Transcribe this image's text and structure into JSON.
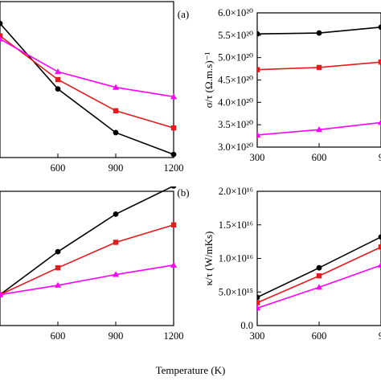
{
  "figure": {
    "shared_xlabel": "Temperature (K)"
  },
  "chart_data": [
    {
      "id": "tl",
      "type": "line",
      "panel_label": "(a)",
      "xlabel": "",
      "ylabel": "",
      "x_ticks": [
        "600",
        "900",
        "1200"
      ],
      "y_ticks": [],
      "x": [
        300,
        600,
        900,
        1200
      ],
      "xlim": [
        300,
        1200
      ],
      "ylim": [
        0,
        1
      ],
      "series": [
        {
          "color": "#000000",
          "marker": "circle",
          "values": [
            0.86,
            0.44,
            0.16,
            0.02
          ]
        },
        {
          "color": "#e41a1c",
          "marker": "square",
          "values": [
            0.78,
            0.5,
            0.3,
            0.19
          ]
        },
        {
          "color": "#ff00ff",
          "marker": "triangle",
          "values": [
            0.76,
            0.55,
            0.45,
            0.39
          ]
        }
      ]
    },
    {
      "id": "tr",
      "type": "line",
      "panel_label": "",
      "xlabel": "",
      "ylabel": "σ/τ (Ω.m.s)⁻¹",
      "x_ticks": [
        "300",
        "600",
        "9"
      ],
      "y_ticks": [
        "3.0×10²⁰",
        "3.5×10²⁰",
        "4.0×10²⁰",
        "4.5×10²⁰",
        "5.0×10²⁰",
        "5.5×10²⁰",
        "6.0×10²⁰"
      ],
      "x": [
        300,
        600,
        900
      ],
      "xlim": [
        300,
        900
      ],
      "ylim": [
        3e+20,
        6e+20
      ],
      "series": [
        {
          "color": "#000000",
          "marker": "circle",
          "values": [
            5.53e+20,
            5.55e+20,
            5.68e+20
          ]
        },
        {
          "color": "#e41a1c",
          "marker": "square",
          "values": [
            4.73e+20,
            4.78e+20,
            4.9e+20
          ]
        },
        {
          "color": "#ff00ff",
          "marker": "triangle",
          "values": [
            3.27e+20,
            3.39e+20,
            3.55e+20
          ]
        }
      ]
    },
    {
      "id": "bl",
      "type": "line",
      "panel_label": "(b)",
      "xlabel": "",
      "ylabel": "",
      "x_ticks": [
        "600",
        "900",
        "1200"
      ],
      "y_ticks": [],
      "x": [
        300,
        600,
        900,
        1200
      ],
      "xlim": [
        300,
        1200
      ],
      "ylim": [
        0,
        1
      ],
      "series": [
        {
          "color": "#000000",
          "marker": "circle",
          "values": [
            0.23,
            0.55,
            0.83,
            1.04
          ]
        },
        {
          "color": "#e41a1c",
          "marker": "square",
          "values": [
            0.23,
            0.43,
            0.62,
            0.75
          ]
        },
        {
          "color": "#ff00ff",
          "marker": "triangle",
          "values": [
            0.23,
            0.3,
            0.38,
            0.45
          ]
        }
      ]
    },
    {
      "id": "br",
      "type": "line",
      "panel_label": "",
      "xlabel": "",
      "ylabel": "κ/τ (W/mKs)",
      "x_ticks": [
        "300",
        "600",
        "9"
      ],
      "y_ticks": [
        "0.0",
        "5.0×10¹⁵",
        "1.0×10¹⁶",
        "1.5×10¹⁶",
        "2.0×10¹⁶"
      ],
      "x": [
        300,
        600,
        900
      ],
      "xlim": [
        300,
        900
      ],
      "ylim": [
        0,
        2e+16
      ],
      "series": [
        {
          "color": "#000000",
          "marker": "circle",
          "values": [
            4200000000000000.0,
            8600000000000000.0,
            1.32e+16
          ]
        },
        {
          "color": "#e41a1c",
          "marker": "square",
          "values": [
            3400000000000000.0,
            7400000000000000.0,
            1.17e+16
          ]
        },
        {
          "color": "#ff00ff",
          "marker": "triangle",
          "values": [
            2600000000000000.0,
            5700000000000000.0,
            9000000000000000.0
          ]
        }
      ]
    }
  ]
}
